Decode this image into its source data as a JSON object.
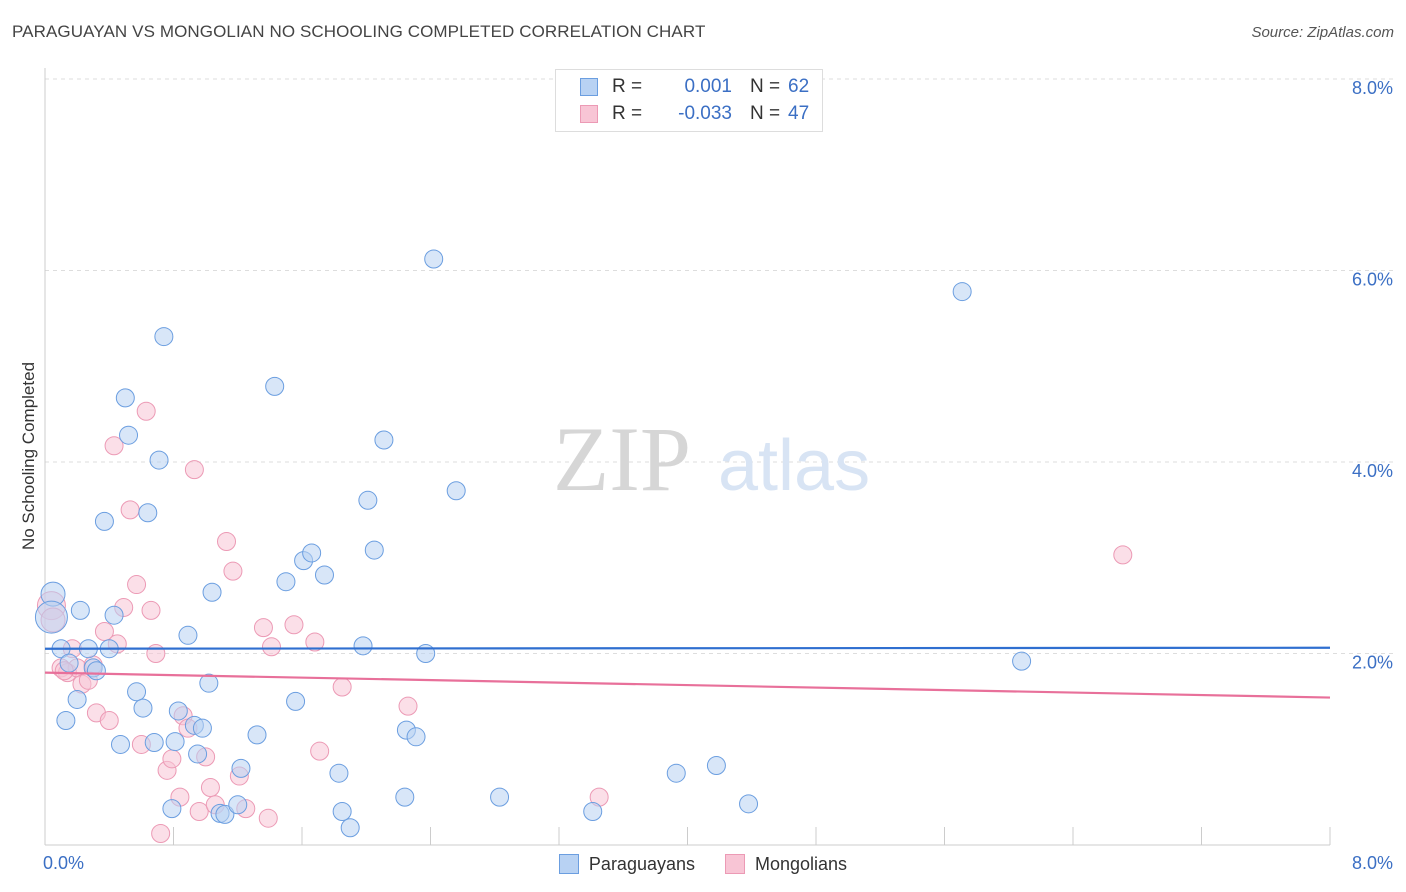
{
  "title": "PARAGUAYAN VS MONGOLIAN NO SCHOOLING COMPLETED CORRELATION CHART",
  "source": "Source: ZipAtlas.com",
  "watermark": {
    "zip": "ZIP",
    "atlas": "atlas"
  },
  "legend": {
    "paraguayans": {
      "r_label": "R =",
      "r_value": "0.001",
      "n_label": "N =",
      "n_value": "62"
    },
    "mongolians": {
      "r_label": "R =",
      "r_value": "-0.033",
      "n_label": "N =",
      "n_value": "47"
    }
  },
  "bottom_legend": {
    "paraguayans": "Paraguayans",
    "mongolians": "Mongolians"
  },
  "colors": {
    "paraguayans_fill": "#b8d2f3",
    "paraguayans_stroke": "#6b9ee0",
    "paraguayans_line": "#2f6fd0",
    "mongolians_fill": "#f8c5d5",
    "mongolians_stroke": "#ec9ab5",
    "mongolians_line": "#e8709a",
    "axis_text": "#3b6fc4",
    "grid": "#dddddd"
  },
  "chart_data": {
    "type": "scatter",
    "title": "PARAGUAYAN VS MONGOLIAN NO SCHOOLING COMPLETED CORRELATION CHART",
    "xlabel": "",
    "ylabel": "No Schooling Completed",
    "xlim": [
      0,
      8
    ],
    "ylim": [
      0,
      8
    ],
    "x_tick_labels": [
      "0.0%",
      "8.0%"
    ],
    "y_ticks": [
      2,
      4,
      6,
      8
    ],
    "y_tick_labels": [
      "2.0%",
      "4.0%",
      "6.0%",
      "8.0%"
    ],
    "grid": true,
    "legend_position": "top-center",
    "series": [
      {
        "name": "Paraguayans",
        "r": 0.001,
        "n": 62,
        "trend": {
          "x0": 0,
          "y0": 2.05,
          "x1": 8,
          "y1": 2.06
        },
        "points": [
          [
            0.05,
            2.62,
            12
          ],
          [
            0.04,
            2.38,
            16
          ],
          [
            0.1,
            2.05,
            9
          ],
          [
            0.15,
            1.9,
            9
          ],
          [
            0.2,
            1.52,
            9
          ],
          [
            0.13,
            1.3,
            9
          ],
          [
            0.22,
            2.45,
            9
          ],
          [
            0.27,
            2.05,
            9
          ],
          [
            0.3,
            1.85,
            9
          ],
          [
            0.32,
            1.82,
            9
          ],
          [
            0.37,
            3.38,
            9
          ],
          [
            0.4,
            2.05,
            9
          ],
          [
            0.43,
            2.4,
            9
          ],
          [
            0.47,
            1.05,
            9
          ],
          [
            0.5,
            4.67,
            9
          ],
          [
            0.52,
            4.28,
            9
          ],
          [
            0.57,
            1.6,
            9
          ],
          [
            0.61,
            1.43,
            9
          ],
          [
            0.64,
            3.47,
            9
          ],
          [
            0.68,
            1.07,
            9
          ],
          [
            0.71,
            4.02,
            9
          ],
          [
            0.74,
            5.31,
            9
          ],
          [
            0.79,
            0.38,
            9
          ],
          [
            0.81,
            1.08,
            9
          ],
          [
            0.83,
            1.4,
            9
          ],
          [
            0.89,
            2.19,
            9
          ],
          [
            0.93,
            1.25,
            9
          ],
          [
            0.95,
            0.95,
            9
          ],
          [
            0.98,
            1.22,
            9
          ],
          [
            1.02,
            1.69,
            9
          ],
          [
            1.04,
            2.64,
            9
          ],
          [
            1.09,
            0.33,
            9
          ],
          [
            1.12,
            0.32,
            9
          ],
          [
            1.2,
            0.42,
            9
          ],
          [
            1.22,
            0.8,
            9
          ],
          [
            1.32,
            1.15,
            9
          ],
          [
            1.43,
            4.79,
            9
          ],
          [
            1.5,
            2.75,
            9
          ],
          [
            1.56,
            1.5,
            9
          ],
          [
            1.61,
            2.97,
            9
          ],
          [
            1.66,
            3.05,
            9
          ],
          [
            1.74,
            2.82,
            9
          ],
          [
            1.83,
            0.75,
            9
          ],
          [
            1.85,
            0.35,
            9
          ],
          [
            1.9,
            0.18,
            9
          ],
          [
            1.98,
            2.08,
            9
          ],
          [
            2.01,
            3.6,
            9
          ],
          [
            2.05,
            3.08,
            9
          ],
          [
            2.11,
            4.23,
            9
          ],
          [
            2.24,
            0.5,
            9
          ],
          [
            2.25,
            1.2,
            9
          ],
          [
            2.31,
            1.13,
            9
          ],
          [
            2.37,
            2.0,
            9
          ],
          [
            2.42,
            6.12,
            9
          ],
          [
            2.56,
            3.7,
            9
          ],
          [
            2.83,
            0.5,
            9
          ],
          [
            3.41,
            0.35,
            9
          ],
          [
            3.93,
            0.75,
            9
          ],
          [
            4.18,
            0.83,
            9
          ],
          [
            4.38,
            0.43,
            9
          ],
          [
            5.71,
            5.78,
            9
          ],
          [
            6.08,
            1.92,
            9
          ]
        ]
      },
      {
        "name": "Mongolians",
        "r": -0.033,
        "n": 47,
        "trend": {
          "x0": 0,
          "y0": 1.8,
          "x1": 8,
          "y1": 1.54
        },
        "points": [
          [
            0.04,
            2.5,
            14
          ],
          [
            0.05,
            2.35,
            12
          ],
          [
            0.1,
            1.85,
            9
          ],
          [
            0.14,
            1.8,
            9
          ],
          [
            0.17,
            2.05,
            9
          ],
          [
            0.2,
            1.85,
            9
          ],
          [
            0.23,
            1.68,
            9
          ],
          [
            0.27,
            1.72,
            9
          ],
          [
            0.3,
            1.88,
            9
          ],
          [
            0.32,
            1.38,
            9
          ],
          [
            0.37,
            2.23,
            9
          ],
          [
            0.4,
            1.3,
            9
          ],
          [
            0.43,
            4.17,
            9
          ],
          [
            0.45,
            2.1,
            9
          ],
          [
            0.49,
            2.48,
            9
          ],
          [
            0.53,
            3.5,
            9
          ],
          [
            0.57,
            2.72,
            9
          ],
          [
            0.6,
            1.05,
            9
          ],
          [
            0.63,
            4.53,
            9
          ],
          [
            0.66,
            2.45,
            9
          ],
          [
            0.69,
            2.0,
            9
          ],
          [
            0.72,
            0.12,
            9
          ],
          [
            0.76,
            0.78,
            9
          ],
          [
            0.79,
            0.9,
            9
          ],
          [
            0.84,
            0.5,
            9
          ],
          [
            0.86,
            1.35,
            9
          ],
          [
            0.89,
            1.22,
            9
          ],
          [
            0.93,
            3.92,
            9
          ],
          [
            0.96,
            0.35,
            9
          ],
          [
            1.0,
            0.92,
            9
          ],
          [
            1.03,
            0.6,
            9
          ],
          [
            1.06,
            0.42,
            9
          ],
          [
            1.13,
            3.17,
            9
          ],
          [
            1.17,
            2.86,
            9
          ],
          [
            1.21,
            0.72,
            9
          ],
          [
            1.25,
            0.38,
            9
          ],
          [
            1.36,
            2.27,
            9
          ],
          [
            1.41,
            2.07,
            9
          ],
          [
            1.39,
            0.28,
            9
          ],
          [
            1.55,
            2.3,
            9
          ],
          [
            1.68,
            2.12,
            9
          ],
          [
            1.71,
            0.98,
            9
          ],
          [
            1.85,
            1.65,
            9
          ],
          [
            2.26,
            1.45,
            9
          ],
          [
            3.45,
            0.5,
            9
          ],
          [
            6.71,
            3.03,
            9
          ],
          [
            0.12,
            1.82,
            9
          ]
        ]
      }
    ]
  }
}
